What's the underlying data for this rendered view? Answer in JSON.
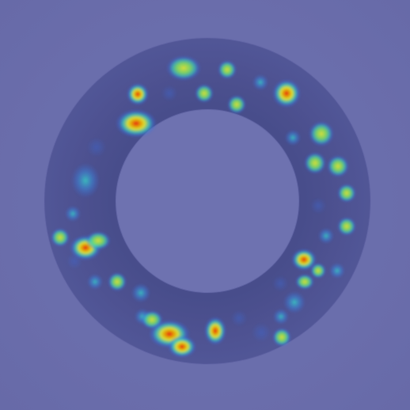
{
  "image": {
    "description_kind": "heatmap-overlay",
    "colors": {
      "background": "#7679bf",
      "ring_outer": "#4f5499",
      "ring_inner_fill": "#7b7fc4",
      "heat_low": "#3f7cff",
      "heat_mid": "#3fe6d8",
      "heat_high": "#f7ff3c",
      "heat_peak": "#ff2a1a"
    }
  }
}
